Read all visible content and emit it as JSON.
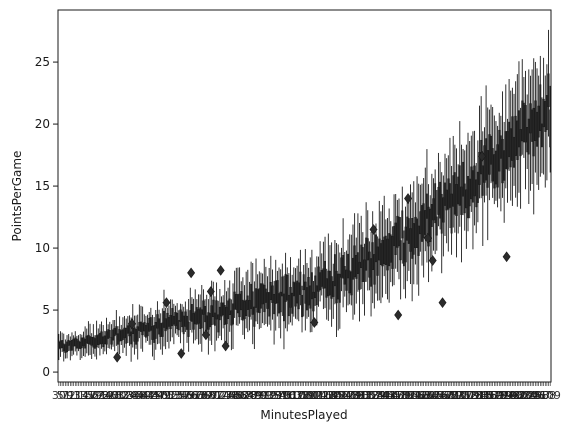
{
  "chart_data": {
    "type": "box",
    "title": "",
    "xlabel": "MinutesPlayed",
    "ylabel": "PointsPerGame",
    "ylim": [
      -0.8,
      29.2
    ],
    "yticks": [
      "0",
      "5",
      "10",
      "15",
      "20",
      "25"
    ],
    "grid": false,
    "legend": "none",
    "color": "#1a1a1a",
    "categories_count": 300,
    "x_tick_labels_visible": "overlapping, unreadable",
    "trend": {
      "description": "points per game rises with minutes played",
      "median_start": 2.0,
      "median_mid": 6.5,
      "median_end": 21.0
    },
    "notable_outliers": [
      {
        "y": 8.2
      },
      {
        "y": 8.0
      },
      {
        "y": 6.5
      },
      {
        "y": 5.6
      },
      {
        "y": 3.9
      },
      {
        "y": 2.1
      },
      {
        "y": 1.5
      },
      {
        "y": 1.2
      },
      {
        "y": 11.5
      },
      {
        "y": 14.0
      },
      {
        "y": 10.8
      },
      {
        "y": 9.0
      },
      {
        "y": 4.6
      },
      {
        "y": 5.6
      },
      {
        "y": 17.4
      },
      {
        "y": 9.3
      },
      {
        "y": 3.0
      },
      {
        "y": 4.0
      }
    ]
  }
}
